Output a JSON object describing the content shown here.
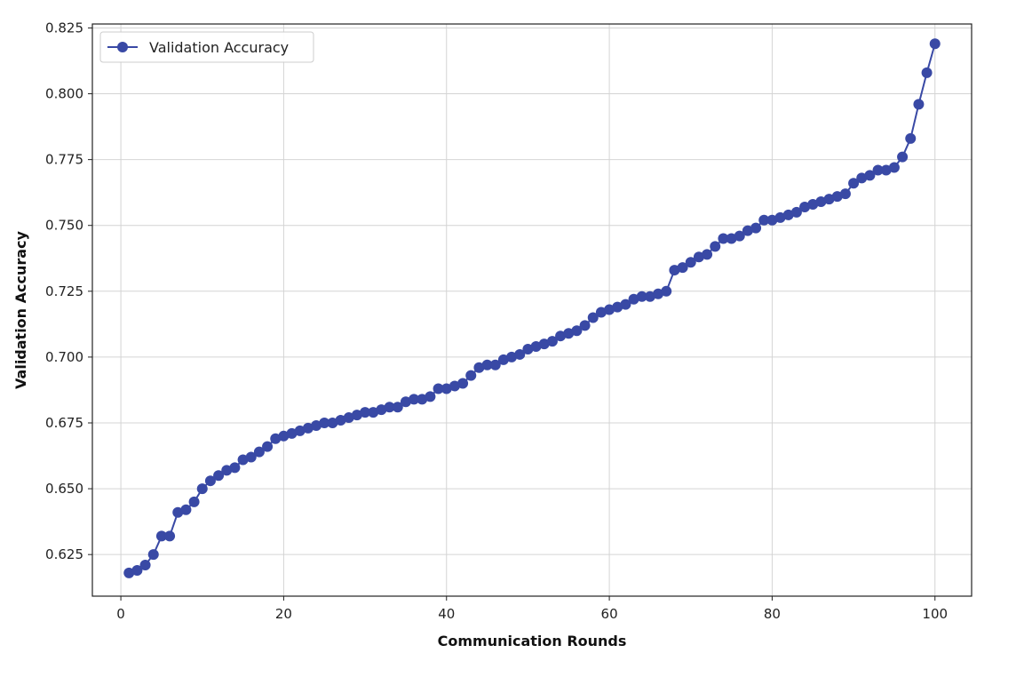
{
  "chart_data": {
    "type": "line",
    "xlabel": "Communication Rounds",
    "ylabel": "Validation Accuracy",
    "xlim": [
      -3.5,
      104.5
    ],
    "ylim": [
      0.6092,
      0.8265
    ],
    "xticks": [
      0,
      20,
      40,
      60,
      80,
      100
    ],
    "xtick_labels": [
      "0",
      "20",
      "40",
      "60",
      "80",
      "100"
    ],
    "yticks": [
      0.625,
      0.65,
      0.675,
      0.7,
      0.725,
      0.75,
      0.775,
      0.8,
      0.825
    ],
    "ytick_labels": [
      "0.625",
      "0.650",
      "0.675",
      "0.700",
      "0.725",
      "0.750",
      "0.775",
      "0.800",
      "0.825"
    ],
    "grid": true,
    "legend": {
      "position": "top-left",
      "entries": [
        "Validation Accuracy"
      ]
    },
    "series": [
      {
        "name": "Validation Accuracy",
        "color": "#3949a5",
        "marker": "circle",
        "x": [
          1,
          2,
          3,
          4,
          5,
          6,
          7,
          8,
          9,
          10,
          11,
          12,
          13,
          14,
          15,
          16,
          17,
          18,
          19,
          20,
          21,
          22,
          23,
          24,
          25,
          26,
          27,
          28,
          29,
          30,
          31,
          32,
          33,
          34,
          35,
          36,
          37,
          38,
          39,
          40,
          41,
          42,
          43,
          44,
          45,
          46,
          47,
          48,
          49,
          50,
          51,
          52,
          53,
          54,
          55,
          56,
          57,
          58,
          59,
          60,
          61,
          62,
          63,
          64,
          65,
          66,
          67,
          68,
          69,
          70,
          71,
          72,
          73,
          74,
          75,
          76,
          77,
          78,
          79,
          80,
          81,
          82,
          83,
          84,
          85,
          86,
          87,
          88,
          89,
          90,
          91,
          92,
          93,
          94,
          95,
          96,
          97,
          98,
          99,
          100
        ],
        "values": [
          0.618,
          0.619,
          0.621,
          0.625,
          0.632,
          0.632,
          0.641,
          0.642,
          0.645,
          0.65,
          0.653,
          0.655,
          0.657,
          0.658,
          0.661,
          0.662,
          0.664,
          0.666,
          0.669,
          0.67,
          0.671,
          0.672,
          0.673,
          0.674,
          0.675,
          0.675,
          0.676,
          0.677,
          0.678,
          0.679,
          0.679,
          0.68,
          0.681,
          0.681,
          0.683,
          0.684,
          0.684,
          0.685,
          0.688,
          0.688,
          0.689,
          0.69,
          0.693,
          0.696,
          0.697,
          0.697,
          0.699,
          0.7,
          0.701,
          0.703,
          0.704,
          0.705,
          0.706,
          0.708,
          0.709,
          0.71,
          0.712,
          0.715,
          0.717,
          0.718,
          0.719,
          0.72,
          0.722,
          0.723,
          0.723,
          0.724,
          0.725,
          0.733,
          0.734,
          0.736,
          0.738,
          0.739,
          0.742,
          0.745,
          0.745,
          0.746,
          0.748,
          0.749,
          0.752,
          0.752,
          0.753,
          0.754,
          0.755,
          0.757,
          0.758,
          0.759,
          0.76,
          0.761,
          0.762,
          0.766,
          0.768,
          0.769,
          0.771,
          0.771,
          0.772,
          0.776,
          0.783,
          0.796,
          0.808,
          0.819
        ]
      }
    ]
  }
}
